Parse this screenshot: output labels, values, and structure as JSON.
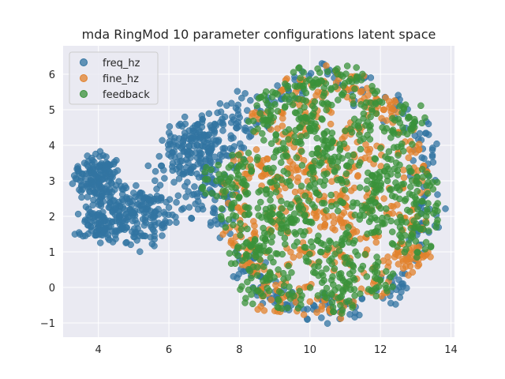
{
  "chart_data": {
    "type": "scatter",
    "title": "mda RingMod 10 parameter configurations latent space",
    "xlabel": "",
    "ylabel": "",
    "xlim": [
      3.0,
      14.1
    ],
    "ylim": [
      -1.4,
      6.8
    ],
    "xticks": [
      4,
      6,
      8,
      10,
      12,
      14
    ],
    "yticks": [
      -1,
      0,
      1,
      2,
      3,
      4,
      5,
      6
    ],
    "grid": true,
    "legend_position": "top-left",
    "series": [
      {
        "name": "freq_hz",
        "color": "#3274a1",
        "points": [
          [
            4.0,
            3.1
          ],
          [
            3.8,
            3.0
          ],
          [
            4.2,
            3.2
          ],
          [
            4.1,
            2.8
          ],
          [
            3.9,
            3.3
          ],
          [
            4.3,
            3.0
          ],
          [
            3.7,
            2.9
          ],
          [
            4.05,
            3.45
          ],
          [
            3.95,
            2.65
          ],
          [
            4.4,
            3.1
          ],
          [
            3.65,
            3.2
          ],
          [
            4.15,
            3.35
          ],
          [
            4.25,
            2.85
          ],
          [
            3.85,
            2.75
          ],
          [
            4.0,
            1.7
          ],
          [
            4.2,
            1.9
          ],
          [
            3.8,
            1.6
          ],
          [
            4.3,
            1.7
          ],
          [
            4.1,
            1.5
          ],
          [
            3.9,
            2.0
          ],
          [
            4.4,
            1.85
          ],
          [
            3.7,
            1.75
          ],
          [
            4.5,
            1.6
          ],
          [
            4.6,
            2.0
          ],
          [
            5.0,
            2.1
          ],
          [
            5.2,
            2.3
          ],
          [
            4.8,
            1.9
          ],
          [
            5.4,
            2.2
          ],
          [
            5.1,
            1.8
          ],
          [
            5.3,
            2.5
          ],
          [
            4.9,
            2.4
          ],
          [
            5.6,
            2.0
          ],
          [
            5.5,
            1.7
          ],
          [
            5.7,
            2.2
          ],
          [
            5.8,
            1.75
          ],
          [
            5.25,
            1.45
          ],
          [
            4.7,
            2.25
          ],
          [
            5.05,
            2.55
          ],
          [
            6.6,
            3.8
          ],
          [
            6.8,
            4.0
          ],
          [
            7.0,
            4.3
          ],
          [
            6.5,
            3.6
          ],
          [
            6.9,
            3.5
          ],
          [
            6.7,
            4.4
          ],
          [
            7.1,
            3.9
          ],
          [
            6.4,
            4.1
          ],
          [
            6.6,
            3.3
          ],
          [
            7.2,
            4.5
          ],
          [
            6.85,
            3.1
          ],
          [
            6.3,
            3.7
          ],
          [
            7.3,
            4.6
          ],
          [
            6.1,
            3.8
          ],
          [
            6.55,
            2.7
          ],
          [
            5.85,
            3.3
          ],
          [
            6.75,
            2.35
          ],
          [
            7.4,
            4.1
          ],
          [
            6.45,
            4.35
          ],
          [
            7.05,
            3.6
          ],
          [
            7.3,
            2.2
          ],
          [
            7.5,
            2.9
          ],
          [
            7.6,
            1.8
          ],
          [
            7.7,
            3.7
          ],
          [
            7.2,
            2.7
          ],
          [
            7.8,
            4.8
          ],
          [
            7.9,
            5.05
          ],
          [
            8.0,
            0.75
          ],
          [
            9.6,
            -0.4
          ],
          [
            10.5,
            6.0
          ],
          [
            9.2,
            5.3
          ],
          [
            11.5,
            5.5
          ],
          [
            12.4,
            5.0
          ],
          [
            13.2,
            3.9
          ],
          [
            13.4,
            2.2
          ],
          [
            13.1,
            1.2
          ],
          [
            12.6,
            0.1
          ],
          [
            11.2,
            -0.4
          ],
          [
            10.1,
            -0.5
          ],
          [
            8.6,
            0.0
          ],
          [
            8.2,
            4.4
          ],
          [
            8.6,
            4.9
          ],
          [
            9.8,
            5.6
          ],
          [
            12.9,
            4.5
          ],
          [
            13.3,
            3.3
          ],
          [
            13.2,
            1.8
          ],
          [
            12.3,
            -0.1
          ],
          [
            10.6,
            -0.55
          ],
          [
            9.1,
            -0.3
          ],
          [
            8.4,
            0.4
          ]
        ]
      },
      {
        "name": "fine_hz",
        "color": "#e1812c",
        "points": [
          [
            8.3,
            3.6
          ],
          [
            8.8,
            4.7
          ],
          [
            9.6,
            5.5
          ],
          [
            10.4,
            5.8
          ],
          [
            11.3,
            5.6
          ],
          [
            12.1,
            5.0
          ],
          [
            12.7,
            4.1
          ],
          [
            13.0,
            3.0
          ],
          [
            12.9,
            1.9
          ],
          [
            12.5,
            0.9
          ],
          [
            11.8,
            0.1
          ],
          [
            10.9,
            -0.4
          ],
          [
            10.0,
            -0.4
          ],
          [
            9.1,
            -0.1
          ],
          [
            8.5,
            0.6
          ],
          [
            8.0,
            1.6
          ],
          [
            7.9,
            2.6
          ],
          [
            8.7,
            3.2
          ],
          [
            9.4,
            4.2
          ],
          [
            10.2,
            4.8
          ],
          [
            11.0,
            4.4
          ],
          [
            11.7,
            3.6
          ],
          [
            12.1,
            2.5
          ],
          [
            11.6,
            1.4
          ],
          [
            10.7,
            0.7
          ],
          [
            9.7,
            0.9
          ],
          [
            9.0,
            1.8
          ],
          [
            9.3,
            2.8
          ],
          [
            10.1,
            3.5
          ],
          [
            10.9,
            3.0
          ],
          [
            11.2,
            2.0
          ],
          [
            10.3,
            1.7
          ],
          [
            10.0,
            2.5
          ],
          [
            10.6,
            2.4
          ],
          [
            9.6,
            3.3
          ],
          [
            8.2,
            1.1
          ],
          [
            12.8,
            0.8
          ],
          [
            8.9,
            -0.35
          ],
          [
            13.1,
            0.9
          ],
          [
            11.9,
            5.3
          ]
        ]
      },
      {
        "name": "feedback",
        "color": "#3a923a",
        "points": [
          [
            10.6,
            2.6
          ],
          [
            9.8,
            2.2
          ],
          [
            11.1,
            3.4
          ],
          [
            9.3,
            3.9
          ],
          [
            10.2,
            4.2
          ],
          [
            11.8,
            2.9
          ],
          [
            12.3,
            3.6
          ],
          [
            8.6,
            2.4
          ],
          [
            8.4,
            1.2
          ],
          [
            9.1,
            0.5
          ],
          [
            10.4,
            0.2
          ],
          [
            11.5,
            0.6
          ],
          [
            12.6,
            1.6
          ],
          [
            12.9,
            2.6
          ],
          [
            12.5,
            4.3
          ],
          [
            11.6,
            5.2
          ],
          [
            10.6,
            5.6
          ],
          [
            9.5,
            5.4
          ],
          [
            8.7,
            4.6
          ],
          [
            8.1,
            3.4
          ],
          [
            7.9,
            2.0
          ],
          [
            8.2,
            0.9
          ],
          [
            9.4,
            -0.2
          ],
          [
            10.8,
            -0.3
          ],
          [
            12.0,
            0.2
          ],
          [
            13.0,
            1.3
          ],
          [
            13.2,
            3.1
          ],
          [
            12.8,
            4.8
          ],
          [
            11.1,
            5.8
          ],
          [
            9.9,
            5.8
          ],
          [
            8.9,
            5.1
          ],
          [
            7.8,
            2.9
          ],
          [
            9.6,
            1.5
          ],
          [
            10.9,
            1.3
          ],
          [
            11.9,
            1.9
          ],
          [
            11.4,
            4.3
          ],
          [
            10.0,
            3.2
          ],
          [
            9.0,
            3.0
          ],
          [
            10.5,
            3.9
          ],
          [
            11.6,
            2.3
          ],
          [
            10.3,
            1.0
          ],
          [
            9.2,
            2.0
          ],
          [
            12.2,
            3.0
          ],
          [
            8.8,
            1.5
          ],
          [
            10.1,
            4.9
          ],
          [
            7.35,
            3.0
          ],
          [
            8.5,
            -0.1
          ],
          [
            13.3,
            2.0
          ],
          [
            11.0,
            0.0
          ],
          [
            9.7,
            4.5
          ]
        ]
      }
    ]
  }
}
